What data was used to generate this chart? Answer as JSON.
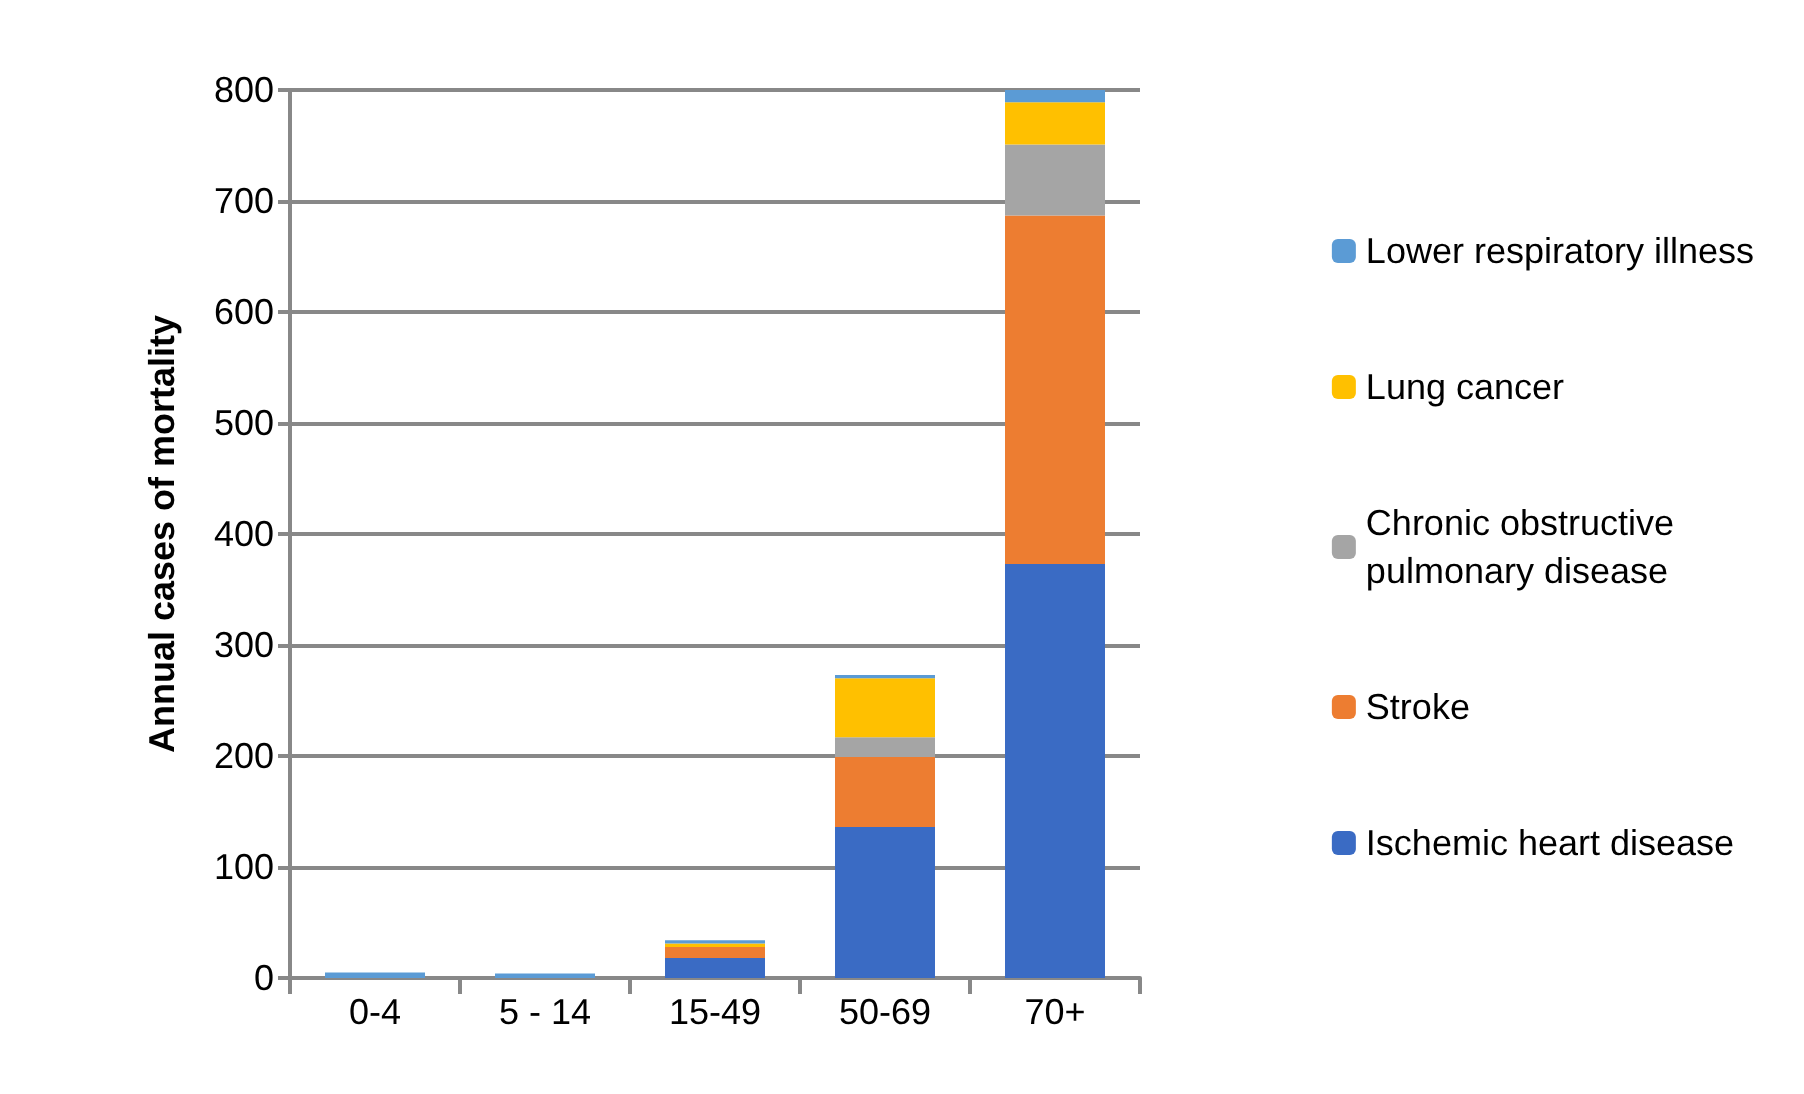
{
  "chart_data": {
    "type": "bar",
    "ylabel": "Annual cases of mortality",
    "categories": [
      "0-4",
      "5 - 14",
      "15-49",
      "50-69",
      "70+"
    ],
    "stacked": true,
    "series": [
      {
        "name": "Ischemic heart disease",
        "color": "#3a6bc4",
        "values": [
          0,
          0,
          18,
          136,
          373
        ]
      },
      {
        "name": "Stroke",
        "color": "#ed7d31",
        "values": [
          0,
          0,
          10,
          63,
          314
        ]
      },
      {
        "name": "Chronic obstructive pulmonary disease",
        "color": "#a5a5a5",
        "values": [
          0,
          0,
          null,
          18,
          64
        ]
      },
      {
        "name": "Lung cancer",
        "color": "#ffc000",
        "values": [
          0,
          0,
          3,
          53,
          38
        ]
      },
      {
        "name": "Lower respiratory illness",
        "color": "#5b9bd5",
        "values": [
          5,
          4,
          3,
          3,
          11
        ]
      }
    ],
    "ylim": [
      0,
      800
    ],
    "yticks": [
      0,
      100,
      200,
      300,
      400,
      500,
      600,
      700,
      800
    ],
    "grid": "y",
    "legend": "right"
  }
}
